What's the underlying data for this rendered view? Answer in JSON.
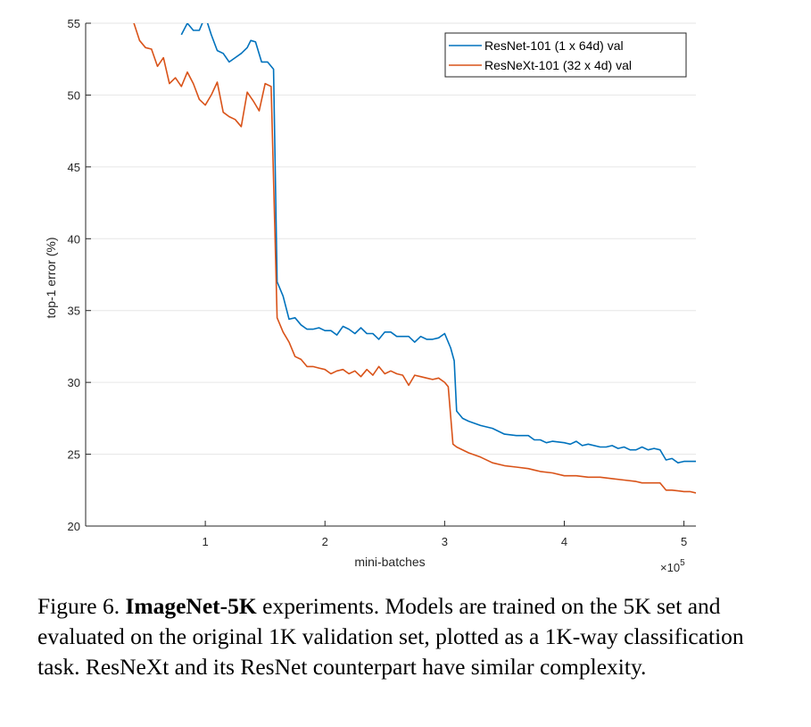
{
  "caption": {
    "label": "Figure 6.",
    "bold": "ImageNet-5K",
    "text": "experiments. Models are trained on the 5K set and evaluated on the original 1K validation set, plotted as a 1K-way classification task. ResNeXt and its ResNet counterpart have similar complexity."
  },
  "chart_data": {
    "type": "line",
    "title": "",
    "xlabel": "mini-batches",
    "ylabel": "top-1 error (%)",
    "x_multiplier_label": "×10",
    "x_multiplier_exponent": "5",
    "xlim": [
      0,
      5.1
    ],
    "ylim": [
      20,
      55
    ],
    "xticks": [
      1,
      2,
      3,
      4,
      5
    ],
    "yticks": [
      20,
      25,
      30,
      35,
      40,
      45,
      50,
      55
    ],
    "grid": "horizontal",
    "legend_position": "top-right",
    "series": [
      {
        "name": "ResNet-101 (1 x 64d) val",
        "color": "#0072bd",
        "points": [
          [
            0.8,
            54.2
          ],
          [
            0.85,
            55.0
          ],
          [
            0.9,
            54.5
          ],
          [
            0.95,
            54.5
          ],
          [
            1.0,
            55.5
          ],
          [
            1.05,
            54.2
          ],
          [
            1.1,
            53.1
          ],
          [
            1.15,
            52.9
          ],
          [
            1.2,
            52.3
          ],
          [
            1.25,
            52.6
          ],
          [
            1.3,
            52.9
          ],
          [
            1.35,
            53.3
          ],
          [
            1.38,
            53.8
          ],
          [
            1.42,
            53.7
          ],
          [
            1.47,
            52.3
          ],
          [
            1.52,
            52.3
          ],
          [
            1.57,
            51.8
          ],
          [
            1.6,
            37.0
          ],
          [
            1.65,
            36.0
          ],
          [
            1.7,
            34.4
          ],
          [
            1.75,
            34.5
          ],
          [
            1.8,
            34.0
          ],
          [
            1.85,
            33.7
          ],
          [
            1.9,
            33.7
          ],
          [
            1.95,
            33.8
          ],
          [
            2.0,
            33.6
          ],
          [
            2.05,
            33.6
          ],
          [
            2.1,
            33.3
          ],
          [
            2.15,
            33.9
          ],
          [
            2.2,
            33.7
          ],
          [
            2.25,
            33.4
          ],
          [
            2.3,
            33.8
          ],
          [
            2.35,
            33.4
          ],
          [
            2.4,
            33.4
          ],
          [
            2.45,
            33.0
          ],
          [
            2.5,
            33.5
          ],
          [
            2.55,
            33.5
          ],
          [
            2.6,
            33.2
          ],
          [
            2.65,
            33.2
          ],
          [
            2.7,
            33.2
          ],
          [
            2.75,
            32.8
          ],
          [
            2.8,
            33.2
          ],
          [
            2.85,
            33.0
          ],
          [
            2.9,
            33.0
          ],
          [
            2.95,
            33.1
          ],
          [
            3.0,
            33.4
          ],
          [
            3.05,
            32.4
          ],
          [
            3.08,
            31.5
          ],
          [
            3.1,
            28.0
          ],
          [
            3.15,
            27.5
          ],
          [
            3.2,
            27.3
          ],
          [
            3.3,
            27.0
          ],
          [
            3.4,
            26.8
          ],
          [
            3.5,
            26.4
          ],
          [
            3.6,
            26.3
          ],
          [
            3.7,
            26.3
          ],
          [
            3.75,
            26.0
          ],
          [
            3.8,
            26.0
          ],
          [
            3.85,
            25.8
          ],
          [
            3.9,
            25.9
          ],
          [
            4.0,
            25.8
          ],
          [
            4.05,
            25.7
          ],
          [
            4.1,
            25.9
          ],
          [
            4.15,
            25.6
          ],
          [
            4.2,
            25.7
          ],
          [
            4.3,
            25.5
          ],
          [
            4.35,
            25.5
          ],
          [
            4.4,
            25.6
          ],
          [
            4.45,
            25.4
          ],
          [
            4.5,
            25.5
          ],
          [
            4.55,
            25.3
          ],
          [
            4.6,
            25.3
          ],
          [
            4.65,
            25.5
          ],
          [
            4.7,
            25.3
          ],
          [
            4.75,
            25.4
          ],
          [
            4.8,
            25.3
          ],
          [
            4.85,
            24.6
          ],
          [
            4.9,
            24.7
          ],
          [
            4.95,
            24.4
          ],
          [
            5.0,
            24.5
          ],
          [
            5.05,
            24.5
          ],
          [
            5.1,
            24.5
          ]
        ]
      },
      {
        "name": "ResNeXt-101 (32 x 4d) val",
        "color": "#d95319",
        "points": [
          [
            0.4,
            55.1
          ],
          [
            0.45,
            53.8
          ],
          [
            0.5,
            53.3
          ],
          [
            0.55,
            53.2
          ],
          [
            0.6,
            52.0
          ],
          [
            0.65,
            52.6
          ],
          [
            0.7,
            50.8
          ],
          [
            0.75,
            51.2
          ],
          [
            0.8,
            50.6
          ],
          [
            0.85,
            51.6
          ],
          [
            0.9,
            50.8
          ],
          [
            0.95,
            49.7
          ],
          [
            1.0,
            49.3
          ],
          [
            1.05,
            50.0
          ],
          [
            1.1,
            50.9
          ],
          [
            1.15,
            48.8
          ],
          [
            1.2,
            48.5
          ],
          [
            1.25,
            48.3
          ],
          [
            1.3,
            47.8
          ],
          [
            1.35,
            50.2
          ],
          [
            1.4,
            49.6
          ],
          [
            1.45,
            48.9
          ],
          [
            1.5,
            50.8
          ],
          [
            1.55,
            50.6
          ],
          [
            1.6,
            34.5
          ],
          [
            1.65,
            33.5
          ],
          [
            1.7,
            32.8
          ],
          [
            1.75,
            31.8
          ],
          [
            1.8,
            31.6
          ],
          [
            1.85,
            31.1
          ],
          [
            1.9,
            31.1
          ],
          [
            1.95,
            31.0
          ],
          [
            2.0,
            30.9
          ],
          [
            2.05,
            30.6
          ],
          [
            2.1,
            30.8
          ],
          [
            2.15,
            30.9
          ],
          [
            2.2,
            30.6
          ],
          [
            2.25,
            30.8
          ],
          [
            2.3,
            30.4
          ],
          [
            2.35,
            30.9
          ],
          [
            2.4,
            30.5
          ],
          [
            2.45,
            31.1
          ],
          [
            2.5,
            30.6
          ],
          [
            2.55,
            30.8
          ],
          [
            2.6,
            30.6
          ],
          [
            2.65,
            30.5
          ],
          [
            2.7,
            29.8
          ],
          [
            2.75,
            30.5
          ],
          [
            2.8,
            30.4
          ],
          [
            2.85,
            30.3
          ],
          [
            2.9,
            30.2
          ],
          [
            2.95,
            30.3
          ],
          [
            3.0,
            30.0
          ],
          [
            3.03,
            29.7
          ],
          [
            3.07,
            25.7
          ],
          [
            3.1,
            25.5
          ],
          [
            3.2,
            25.1
          ],
          [
            3.3,
            24.8
          ],
          [
            3.4,
            24.4
          ],
          [
            3.5,
            24.2
          ],
          [
            3.6,
            24.1
          ],
          [
            3.7,
            24.0
          ],
          [
            3.75,
            23.9
          ],
          [
            3.8,
            23.8
          ],
          [
            3.9,
            23.7
          ],
          [
            4.0,
            23.5
          ],
          [
            4.1,
            23.5
          ],
          [
            4.2,
            23.4
          ],
          [
            4.3,
            23.4
          ],
          [
            4.4,
            23.3
          ],
          [
            4.5,
            23.2
          ],
          [
            4.6,
            23.1
          ],
          [
            4.65,
            23.0
          ],
          [
            4.7,
            23.0
          ],
          [
            4.8,
            23.0
          ],
          [
            4.85,
            22.5
          ],
          [
            4.9,
            22.5
          ],
          [
            5.0,
            22.4
          ],
          [
            5.05,
            22.4
          ],
          [
            5.1,
            22.3
          ]
        ]
      }
    ]
  }
}
